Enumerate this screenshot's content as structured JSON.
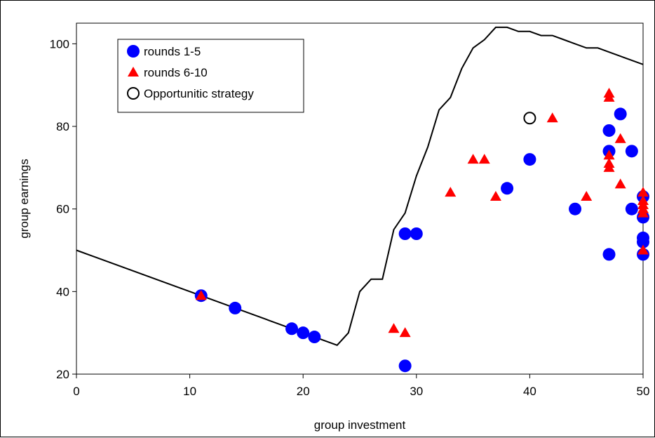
{
  "chart_data": {
    "type": "scatter",
    "title": "",
    "xlabel": "group investment",
    "ylabel": "group earnings",
    "xlim": [
      0,
      50
    ],
    "ylim": [
      20,
      105
    ],
    "xticks": [
      0,
      10,
      20,
      30,
      40,
      50
    ],
    "yticks": [
      20,
      40,
      60,
      80,
      100
    ],
    "grid": false,
    "legend_placement": "top-left",
    "series": [
      {
        "name": "rounds 1-5",
        "marker": "circle",
        "color": "#0000ff",
        "points": [
          [
            11,
            39
          ],
          [
            14,
            36
          ],
          [
            19,
            31
          ],
          [
            20,
            30
          ],
          [
            21,
            29
          ],
          [
            29,
            22
          ],
          [
            29,
            54
          ],
          [
            30,
            54
          ],
          [
            38,
            65
          ],
          [
            40,
            72
          ],
          [
            44,
            60
          ],
          [
            47,
            49
          ],
          [
            47,
            74
          ],
          [
            47,
            79
          ],
          [
            48,
            83
          ],
          [
            49,
            74
          ],
          [
            49,
            60
          ],
          [
            50,
            63
          ],
          [
            50,
            58
          ],
          [
            50,
            53
          ],
          [
            50,
            52
          ],
          [
            50,
            49
          ]
        ]
      },
      {
        "name": "rounds 6-10",
        "marker": "triangle",
        "color": "#ff0000",
        "points": [
          [
            11,
            39
          ],
          [
            28,
            31
          ],
          [
            29,
            30
          ],
          [
            33,
            64
          ],
          [
            35,
            72
          ],
          [
            36,
            72
          ],
          [
            37,
            63
          ],
          [
            42,
            82
          ],
          [
            45,
            63
          ],
          [
            47,
            88
          ],
          [
            47,
            87
          ],
          [
            47,
            73
          ],
          [
            47,
            71
          ],
          [
            47,
            70
          ],
          [
            48,
            77
          ],
          [
            48,
            66
          ],
          [
            50,
            64
          ],
          [
            50,
            62
          ],
          [
            50,
            61
          ],
          [
            50,
            60
          ],
          [
            50,
            59
          ],
          [
            50,
            50
          ]
        ]
      },
      {
        "name": "Opportunitic strategy",
        "marker": "open-circle",
        "color": "#000000",
        "points": [
          [
            40,
            82
          ]
        ]
      }
    ],
    "line": {
      "color": "#000000",
      "points": [
        [
          0,
          50
        ],
        [
          23,
          27
        ],
        [
          24,
          30
        ],
        [
          25,
          40
        ],
        [
          26,
          43
        ],
        [
          27,
          43
        ],
        [
          28,
          55
        ],
        [
          29,
          59
        ],
        [
          30,
          68
        ],
        [
          31,
          75
        ],
        [
          32,
          84
        ],
        [
          33,
          87
        ],
        [
          34,
          94
        ],
        [
          35,
          99
        ],
        [
          36,
          101
        ],
        [
          37,
          104
        ],
        [
          38,
          104
        ],
        [
          39,
          103
        ],
        [
          40,
          103
        ],
        [
          41,
          102
        ],
        [
          42,
          102
        ],
        [
          43,
          101
        ],
        [
          44,
          100
        ],
        [
          45,
          99
        ],
        [
          46,
          99
        ],
        [
          47,
          98
        ],
        [
          48,
          97
        ],
        [
          49,
          96
        ],
        [
          50,
          95
        ]
      ]
    }
  }
}
